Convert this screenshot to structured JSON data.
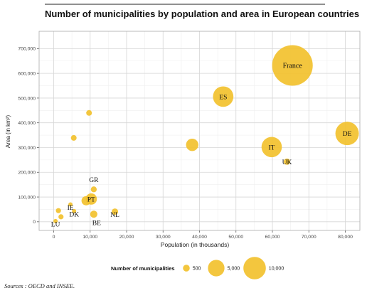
{
  "chart_data": {
    "type": "scatter",
    "title": "Number of municipalities by population and area in European countries",
    "xlabel": "Population (in thousands)",
    "ylabel": "Area (in km²)",
    "xlim": [
      -4000,
      84000
    ],
    "ylim": [
      -35000,
      770000
    ],
    "xticks": [
      0,
      10000,
      20000,
      30000,
      40000,
      50000,
      60000,
      70000,
      80000
    ],
    "yticks": [
      0,
      100000,
      200000,
      300000,
      400000,
      500000,
      600000,
      700000
    ],
    "xtick_labels": [
      "0",
      "10,000",
      "20,000",
      "30,000",
      "40,000",
      "50,000",
      "60,000",
      "70,000",
      "80,000"
    ],
    "ytick_labels": [
      "0",
      "100,000",
      "200,000",
      "300,000",
      "400,000",
      "500,000",
      "600,000",
      "700,000"
    ],
    "grid": true,
    "point_color": "#F2C12E",
    "legend": {
      "title": "Number of municipalities",
      "placement": "bottom",
      "entries": [
        {
          "label": "500",
          "value": 500
        },
        {
          "label": "5,000",
          "value": 5000
        },
        {
          "label": "10,000",
          "value": 10000
        }
      ]
    },
    "points": [
      {
        "label": "France",
        "x": 65500,
        "y": 632000,
        "size": 36000,
        "label_inside": true
      },
      {
        "label": "ES",
        "x": 46500,
        "y": 506000,
        "size": 8100,
        "label_inside": true
      },
      {
        "label": "DE",
        "x": 80500,
        "y": 357000,
        "size": 11000,
        "label_inside": true
      },
      {
        "label": "IT",
        "x": 59800,
        "y": 302000,
        "size": 8000,
        "label_inside": true
      },
      {
        "label": "UK",
        "x": 64000,
        "y": 243000,
        "size": 400,
        "label_inside": false,
        "label_dx": 0,
        "label_dy": 0
      },
      {
        "label": "",
        "x": 38000,
        "y": 311000,
        "size": 2500,
        "label_inside": false
      },
      {
        "label": "",
        "x": 9700,
        "y": 440000,
        "size": 290,
        "label_inside": false
      },
      {
        "label": "",
        "x": 5500,
        "y": 339000,
        "size": 290,
        "label_inside": false
      },
      {
        "label": "GR",
        "x": 11000,
        "y": 131000,
        "size": 325,
        "label_inside": false,
        "label_dx": 0,
        "label_dy": -14
      },
      {
        "label": "PT",
        "x": 10300,
        "y": 92000,
        "size": 2000,
        "label_inside": true
      },
      {
        "label": "BE",
        "x": 11000,
        "y": 30500,
        "size": 589,
        "label_inside": false,
        "label_dx": 4,
        "label_dy": 12
      },
      {
        "label": "NL",
        "x": 16800,
        "y": 41000,
        "size": 400,
        "label_inside": false,
        "label_dx": 0,
        "label_dy": 4
      },
      {
        "label": "",
        "x": 8900,
        "y": 85000,
        "size": 1200,
        "label_inside": false
      },
      {
        "label": "IE",
        "x": 4600,
        "y": 70000,
        "size": 100,
        "label_inside": false,
        "label_dx": 0,
        "label_dy": 4
      },
      {
        "label": "DK",
        "x": 5600,
        "y": 43000,
        "size": 98,
        "label_inside": false,
        "label_dx": 0,
        "label_dy": 4
      },
      {
        "label": "LU",
        "x": 500,
        "y": 2600,
        "size": 100,
        "label_inside": false,
        "label_dx": 0,
        "label_dy": 4
      },
      {
        "label": "",
        "x": 1300,
        "y": 45000,
        "size": 200,
        "label_inside": false
      },
      {
        "label": "",
        "x": 2000,
        "y": 20000,
        "size": 200,
        "label_inside": false
      }
    ]
  },
  "source": "Sources : OECD and INSEE."
}
